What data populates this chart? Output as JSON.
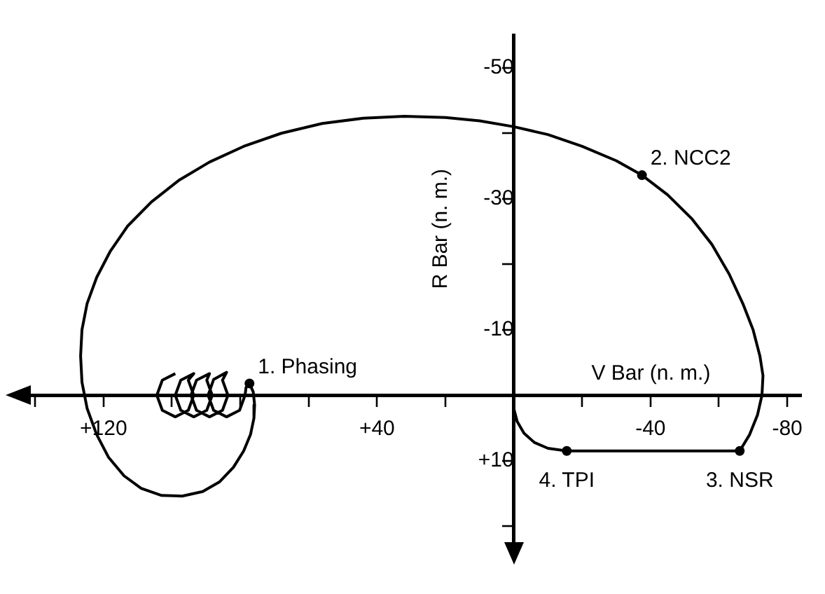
{
  "chart_data": {
    "type": "line",
    "xlabel": "V Bar (n. m.)",
    "ylabel": "R Bar (n. m.)",
    "xlim": [
      147,
      -84
    ],
    "ylim": [
      25,
      -55
    ],
    "xticks": [
      {
        "value": 140,
        "label": null
      },
      {
        "value": 120,
        "label": "+120"
      },
      {
        "value": 100,
        "label": null
      },
      {
        "value": 80,
        "label": null
      },
      {
        "value": 60,
        "label": null
      },
      {
        "value": 40,
        "label": "+40"
      },
      {
        "value": 20,
        "label": null
      },
      {
        "value": -20,
        "label": null
      },
      {
        "value": -40,
        "label": "-40"
      },
      {
        "value": -60,
        "label": null
      },
      {
        "value": -80,
        "label": "-80"
      }
    ],
    "yticks": [
      -50,
      {
        "value": -40,
        "label": null
      },
      -30,
      {
        "value": -20,
        "label": null
      },
      -10,
      {
        "value": 10,
        "label": "+10"
      },
      {
        "value": 20,
        "label": null
      }
    ],
    "grid": false,
    "legend": false,
    "marker": "none",
    "line_style": "solid",
    "series": [
      {
        "color": "#000000",
        "x": [
          99,
          102.8,
          104.4,
          102.8,
          99,
          95.2,
          93.6,
          95.2,
          93.6,
          97.4,
          99,
          97.4,
          93.6,
          89.8,
          88.2,
          89.8,
          89,
          92.8,
          94.4,
          92.8,
          89,
          85.2,
          83.6,
          85.2,
          84,
          87.8,
          89.4,
          87.8,
          84,
          80.2,
          78.6,
          78.3,
          77.3,
          76.2,
          75.8,
          76,
          77,
          79,
          82,
          86,
          91,
          97,
          103,
          109,
          114,
          118.5,
          122,
          124.8,
          126.3,
          126.7,
          126.3,
          124.8,
          122,
          118,
          113,
          106,
          98,
          89,
          79,
          68,
          56,
          44,
          32,
          20,
          10,
          0,
          -10,
          -20,
          -30,
          -37.5,
          -45,
          -52,
          -58,
          -63,
          -67,
          -70,
          -72,
          -72.9,
          -72.6,
          -71.3,
          -69,
          -66.1,
          -15.5,
          -10,
          -6,
          -3,
          -1,
          0,
          0
        ],
        "values": [
          -3.3,
          -2.3,
          0,
          2.3,
          3.3,
          2.3,
          0,
          -2.3,
          -3.3,
          -2.3,
          0,
          2.3,
          3.3,
          2.3,
          0,
          -2.3,
          -3.3,
          -2.3,
          0,
          2.3,
          3.3,
          2.3,
          0,
          -2.3,
          -3.5,
          -2.4,
          0,
          2.3,
          3.3,
          2.3,
          0,
          -1.2,
          -1.8,
          -0.5,
          1.5,
          3.5,
          6,
          8.5,
          11,
          13.2,
          14.7,
          15.4,
          15.3,
          14.2,
          12.3,
          9.5,
          6,
          2,
          -2,
          -6,
          -10,
          -14,
          -18,
          -22,
          -25.8,
          -29.5,
          -32.8,
          -35.6,
          -38,
          -40,
          -41.5,
          -42.3,
          -42.6,
          -42.4,
          -41.9,
          -41,
          -39.8,
          -38,
          -35.8,
          -33.6,
          -30.6,
          -27,
          -23,
          -18.5,
          -14,
          -10,
          -6,
          -3,
          0,
          3,
          6,
          8.5,
          8.5,
          8.1,
          7.2,
          5.8,
          4,
          2,
          0
        ]
      }
    ],
    "annotations": [
      {
        "text": "1. Phasing",
        "x": 77.3,
        "y": -1.8
      },
      {
        "text": "2. NCC2",
        "x": -37.5,
        "y": -33.6
      },
      {
        "text": "3. NSR",
        "x": -66.1,
        "y": 8.5
      },
      {
        "text": "4. TPI",
        "x": -15.5,
        "y": 8.5
      }
    ]
  }
}
